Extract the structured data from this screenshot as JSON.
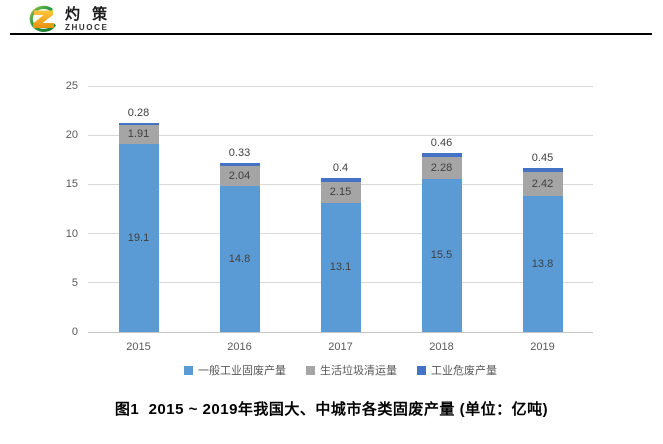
{
  "header": {
    "brand_cn": "灼 策",
    "brand_en": "ZHUOCE"
  },
  "chart_data": {
    "type": "bar",
    "stacked": true,
    "categories": [
      "2015",
      "2016",
      "2017",
      "2018",
      "2019"
    ],
    "series": [
      {
        "name": "一般工业固废产量",
        "color": "#5B9BD5",
        "label_position": "inside",
        "values": [
          19.1,
          14.8,
          13.1,
          15.5,
          13.8
        ]
      },
      {
        "name": "生活垃圾清运量",
        "color": "#A5A5A5",
        "label_position": "inside",
        "values": [
          1.91,
          2.04,
          2.15,
          2.28,
          2.42
        ]
      },
      {
        "name": "工业危废产量",
        "color": "#4472C4",
        "label_position": "above",
        "values": [
          0.28,
          0.33,
          0.4,
          0.46,
          0.45
        ]
      }
    ],
    "y_axis": {
      "min": 0,
      "max": 25,
      "step": 5,
      "ticks": [
        "0",
        "5",
        "10",
        "15",
        "20",
        "25"
      ]
    },
    "grid": true,
    "legend_position": "bottom",
    "colors": {
      "data_label": "#404040",
      "tick_label": "#595959",
      "grid_line": "#D9D9D9"
    }
  },
  "caption": {
    "text": "图1  2015 ~ 2019年我国大、中城市各类固废产量 (单位：亿吨)"
  }
}
